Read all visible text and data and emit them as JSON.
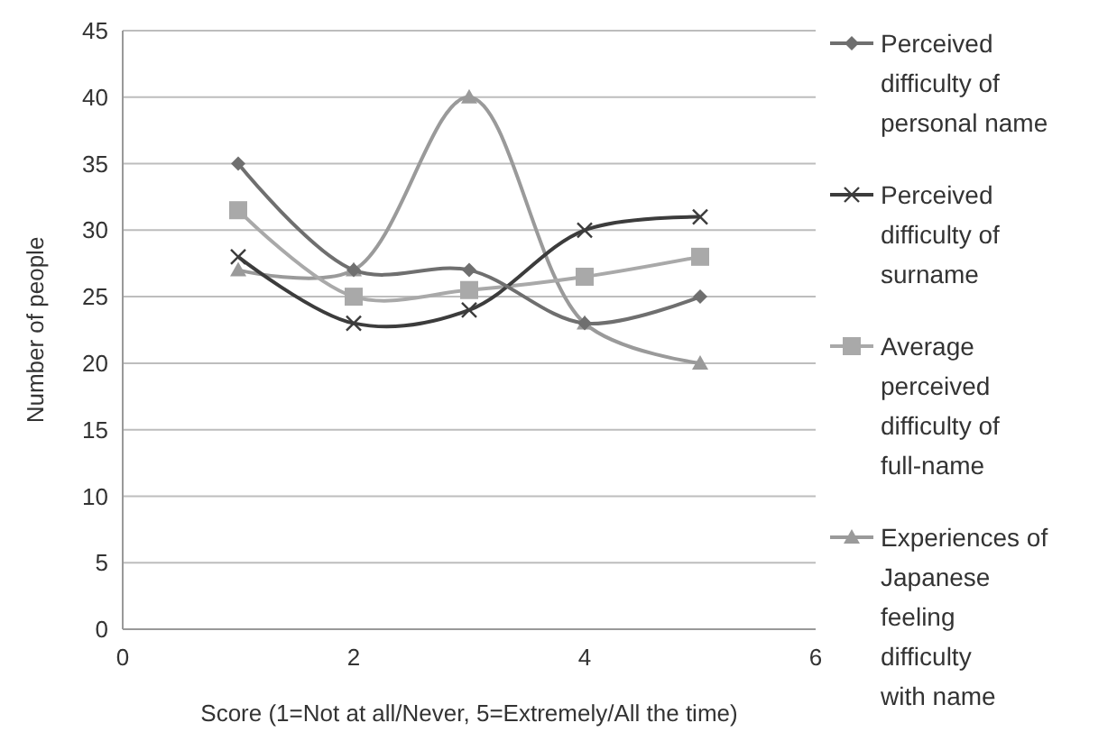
{
  "chart_data": {
    "type": "line",
    "xlabel": "Score (1=Not at all/Never, 5=Extremely/All the time)",
    "ylabel": "Number of people",
    "x": [
      1,
      2,
      3,
      4,
      5
    ],
    "xlim": [
      0,
      6
    ],
    "xticks": [
      0,
      2,
      4,
      6
    ],
    "ylim": [
      0,
      45
    ],
    "yticks": [
      0,
      5,
      10,
      15,
      20,
      25,
      30,
      35,
      40,
      45
    ],
    "grid": "y",
    "legend": "right",
    "series": [
      {
        "name": "Perceived difficulty of personal name",
        "color": "#6f6f6f",
        "marker": "diamond",
        "values": [
          35,
          27,
          27,
          23,
          25
        ]
      },
      {
        "name": "Perceived difficulty of surname",
        "color": "#3c3c3c",
        "marker": "cross",
        "values": [
          28,
          23,
          24,
          30,
          31
        ]
      },
      {
        "name": "Average perceived difficulty of full-name",
        "color": "#a9a9a9",
        "marker": "square",
        "values": [
          31.5,
          25,
          25.5,
          26.5,
          28
        ]
      },
      {
        "name": "Experiences of Japanese feeling difficulty with name",
        "color": "#9a9a9a",
        "marker": "triangle",
        "values": [
          27,
          27,
          40,
          23,
          20
        ]
      }
    ]
  }
}
